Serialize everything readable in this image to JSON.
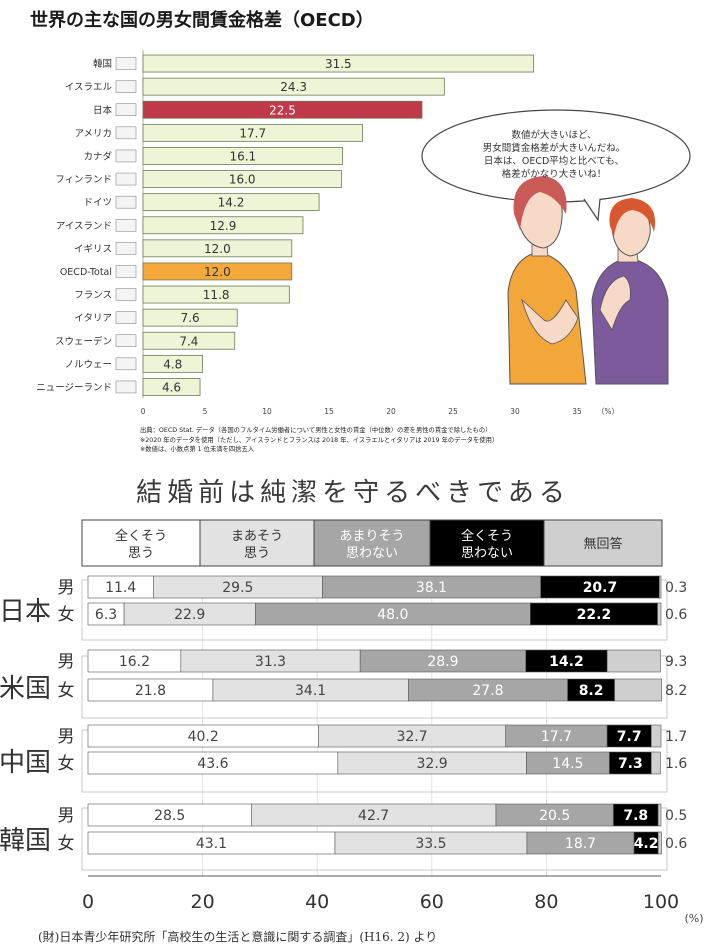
{
  "top_title": "世界の主な国の男女間賃金格差（OECD）",
  "bubble_lines": [
    "数値が大きいほど、",
    "男女間賃金格差が大きいんだね。",
    "日本は、OECD平均と比べても、",
    "格差がかなり大きいね！"
  ],
  "notes": [
    "出典：OECD Stat. データ（各国のフルタイム労働者について男性と女性の賃金（中位数）の差を男性の賃金で除したもの）",
    "※2020 年のデータを使用（ただし、アイスランドとフランスは 2018 年、イスラエルとイタリアは 2019 年のデータを使用）",
    "※数値は、小数点第 1 位未満を四捨五入"
  ],
  "bottom_title": "結婚前は純潔を守るべきである",
  "legend_items": [
    "全くそう\n思う",
    "まあそう\n思う",
    "あまりそう\n思わない",
    "全くそう\n思わない",
    "無回答"
  ],
  "source_note": "(財)日本青少年研究所「高校生の生活と意識に関する調査」(H16. 2) より",
  "colors": {
    "bar": "#eef4d6",
    "bar_stroke": "#6e7a55",
    "japan": "#c0394b",
    "oecd": "#f4a93a",
    "seg": [
      "#ffffff",
      "#e2e2e2",
      "#a6a6a6",
      "#000000",
      "#cfcfcf"
    ]
  },
  "chart_data": [
    {
      "type": "bar",
      "orientation": "horizontal",
      "categories": [
        "韓国",
        "イスラエル",
        "日本",
        "アメリカ",
        "カナダ",
        "フィンランド",
        "ドイツ",
        "アイスランド",
        "イギリス",
        "OECD-Total",
        "フランス",
        "イタリア",
        "スウェーデン",
        "ノルウェー",
        "ニュージーランド"
      ],
      "values": [
        31.5,
        24.3,
        22.5,
        17.7,
        16.1,
        16.0,
        14.2,
        12.9,
        12.0,
        12.0,
        11.8,
        7.6,
        7.4,
        4.8,
        4.6
      ],
      "value_labels": [
        "31.5",
        "24.3",
        "22.5",
        "17.7",
        "16.1",
        "16.0",
        "14.2",
        "12.9",
        "12.0",
        "12.0",
        "11.8",
        "7.6",
        "7.4",
        "4.8",
        "4.6"
      ],
      "highlight": {
        "日本": "japan",
        "OECD-Total": "oecd"
      },
      "xlim": [
        0,
        35
      ],
      "xticks": [
        "0",
        "5",
        "10",
        "15",
        "20",
        "25",
        "30",
        "35"
      ],
      "xunit": "（%）",
      "title": "世界の主な国の男女間賃金格差（OECD）"
    },
    {
      "type": "bar",
      "orientation": "horizontal",
      "stacked": "100%",
      "title": "結婚前は純潔を守るべきである",
      "countries": [
        "日本",
        "米国",
        "中国",
        "韓国"
      ],
      "groups": [
        {
          "country": "日本",
          "rows": [
            {
              "sex": "男",
              "values": [
                11.4,
                29.5,
                38.1,
                20.7,
                0.3
              ],
              "labels": [
                "11.4",
                "29.5",
                "38.1",
                "20.7",
                "0.3"
              ]
            },
            {
              "sex": "女",
              "values": [
                6.3,
                22.9,
                48.0,
                22.2,
                0.6
              ],
              "labels": [
                "6.3",
                "22.9",
                "48.0",
                "22.2",
                "0.6"
              ]
            }
          ]
        },
        {
          "country": "米国",
          "rows": [
            {
              "sex": "男",
              "values": [
                16.2,
                31.3,
                28.9,
                14.2,
                9.3
              ],
              "labels": [
                "16.2",
                "31.3",
                "28.9",
                "14.2",
                "9.3"
              ]
            },
            {
              "sex": "女",
              "values": [
                21.8,
                34.1,
                27.8,
                8.2,
                8.2
              ],
              "labels": [
                "21.8",
                "34.1",
                "27.8",
                "8.2",
                "8.2"
              ]
            }
          ]
        },
        {
          "country": "中国",
          "rows": [
            {
              "sex": "男",
              "values": [
                40.2,
                32.7,
                17.7,
                7.7,
                1.7
              ],
              "labels": [
                "40.2",
                "32.7",
                "17.7",
                "7.7",
                "1.7"
              ]
            },
            {
              "sex": "女",
              "values": [
                43.6,
                32.9,
                14.5,
                7.3,
                1.6
              ],
              "labels": [
                "43.6",
                "32.9",
                "14.5",
                "7.3",
                "1.6"
              ]
            }
          ]
        },
        {
          "country": "韓国",
          "rows": [
            {
              "sex": "男",
              "values": [
                28.5,
                42.7,
                20.5,
                7.8,
                0.5
              ],
              "labels": [
                "28.5",
                "42.7",
                "20.5",
                "7.8",
                "0.5"
              ]
            },
            {
              "sex": "女",
              "values": [
                43.1,
                33.5,
                18.7,
                4.2,
                0.6
              ],
              "labels": [
                "43.1",
                "33.5",
                "18.7",
                "4.2",
                "0.6"
              ]
            }
          ]
        }
      ],
      "series": [
        "全くそう思う",
        "まあそう思う",
        "あまりそう思わない",
        "全くそう思わない",
        "無回答"
      ],
      "xlim": [
        0,
        100
      ],
      "xticks": [
        "0",
        "20",
        "40",
        "60",
        "80",
        "100"
      ],
      "xunit": "(%)"
    }
  ]
}
